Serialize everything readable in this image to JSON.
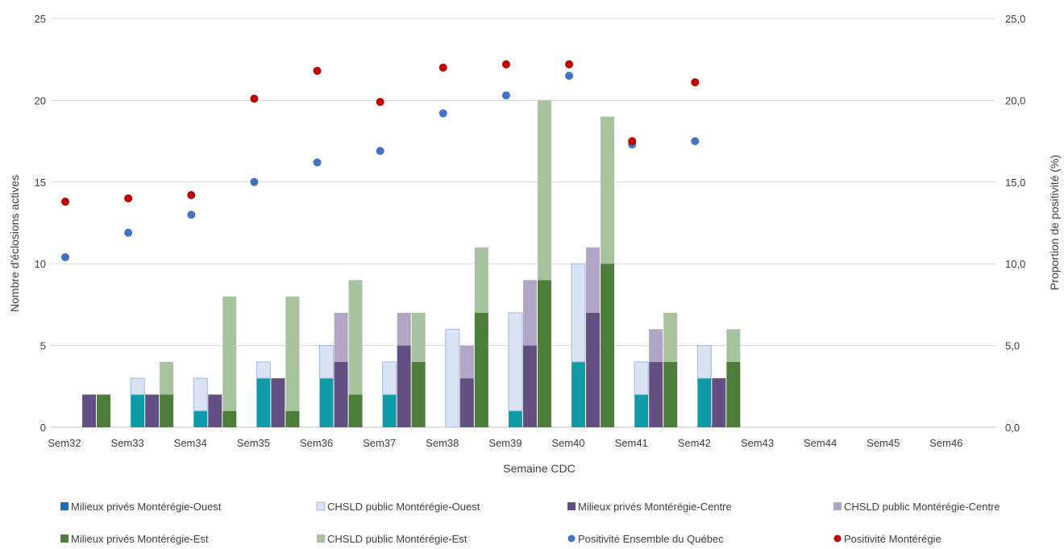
{
  "chart_data": {
    "type": "bar",
    "categories": [
      "Sem32",
      "Sem33",
      "Sem34",
      "Sem35",
      "Sem36",
      "Sem37",
      "Sem38",
      "Sem39",
      "Sem40",
      "Sem41",
      "Sem42",
      "Sem43",
      "Sem44",
      "Sem45",
      "Sem46"
    ],
    "xlabel": "Semaine CDC",
    "ylabel": "Nombre d'éclosions actives",
    "y2label": "Proportion de positivité (%)",
    "ylim": [
      0,
      25
    ],
    "y2lim": [
      0,
      25
    ],
    "yticks": [
      "0",
      "5",
      "10",
      "15",
      "20",
      "25"
    ],
    "y2ticks": [
      "0,0",
      "5,0",
      "10,0",
      "15,0",
      "20,0",
      "25,0"
    ],
    "grid": true,
    "legend_position": "bottom",
    "stacks": [
      {
        "name": "Montérégie-Ouest",
        "series": [
          {
            "name": "Milieux privés Montérégie-Ouest",
            "color": "#0e9aa7",
            "legend_color": "#1f6fb5",
            "values": [
              0,
              2,
              1,
              3,
              3,
              2,
              0,
              1,
              4,
              2,
              3,
              0,
              0,
              0,
              0
            ]
          },
          {
            "name": "CHSLD public Montérégie-Ouest",
            "color": "#dae3f3",
            "edge": "#9fb8e0",
            "values": [
              0,
              1,
              2,
              1,
              2,
              2,
              6,
              6,
              6,
              2,
              2,
              0,
              0,
              0,
              0
            ]
          }
        ]
      },
      {
        "name": "Montérégie-Centre",
        "series": [
          {
            "name": "Milieux privés  Montérégie-Centre",
            "color": "#644f83",
            "values": [
              2,
              2,
              2,
              3,
              4,
              5,
              3,
              5,
              7,
              4,
              3,
              0,
              0,
              0,
              0
            ]
          },
          {
            "name": "CHSLD public Montérégie-Centre",
            "color": "#b1a5c5",
            "values": [
              0,
              0,
              0,
              0,
              3,
              2,
              2,
              4,
              4,
              2,
              0,
              0,
              0,
              0,
              0
            ]
          }
        ]
      },
      {
        "name": "Montérégie-Est",
        "series": [
          {
            "name": "Milieux privés Montérégie-Est",
            "color": "#4c7e39",
            "values": [
              2,
              2,
              1,
              1,
              2,
              4,
              7,
              9,
              10,
              4,
              4,
              0,
              0,
              0,
              0
            ]
          },
          {
            "name": "CHSLD public Montérégie-Est",
            "color": "#a6c39d",
            "values": [
              0,
              2,
              7,
              7,
              7,
              3,
              4,
              11,
              9,
              3,
              2,
              0,
              0,
              0,
              0
            ]
          }
        ]
      }
    ],
    "points": [
      {
        "name": "Positivité Ensemble du Québec",
        "color": "#4472c4",
        "axis": "right",
        "values": [
          10.4,
          11.9,
          13.0,
          15.0,
          16.2,
          16.9,
          19.2,
          20.3,
          21.5,
          17.3,
          17.5,
          null,
          null,
          null,
          null
        ]
      },
      {
        "name": "Positivité Montérégie",
        "color": "#c00000",
        "axis": "right",
        "values": [
          13.8,
          14.0,
          14.2,
          20.1,
          21.8,
          19.9,
          22.0,
          22.2,
          22.2,
          17.5,
          21.1,
          null,
          null,
          null,
          null
        ]
      }
    ],
    "legend": [
      "Milieux privés Montérégie-Ouest",
      "CHSLD public Montérégie-Ouest",
      "Milieux privés  Montérégie-Centre",
      "CHSLD public Montérégie-Centre",
      "Milieux privés Montérégie-Est",
      "CHSLD public Montérégie-Est",
      "Positivité Ensemble du Québec",
      "Positivité Montérégie"
    ]
  }
}
